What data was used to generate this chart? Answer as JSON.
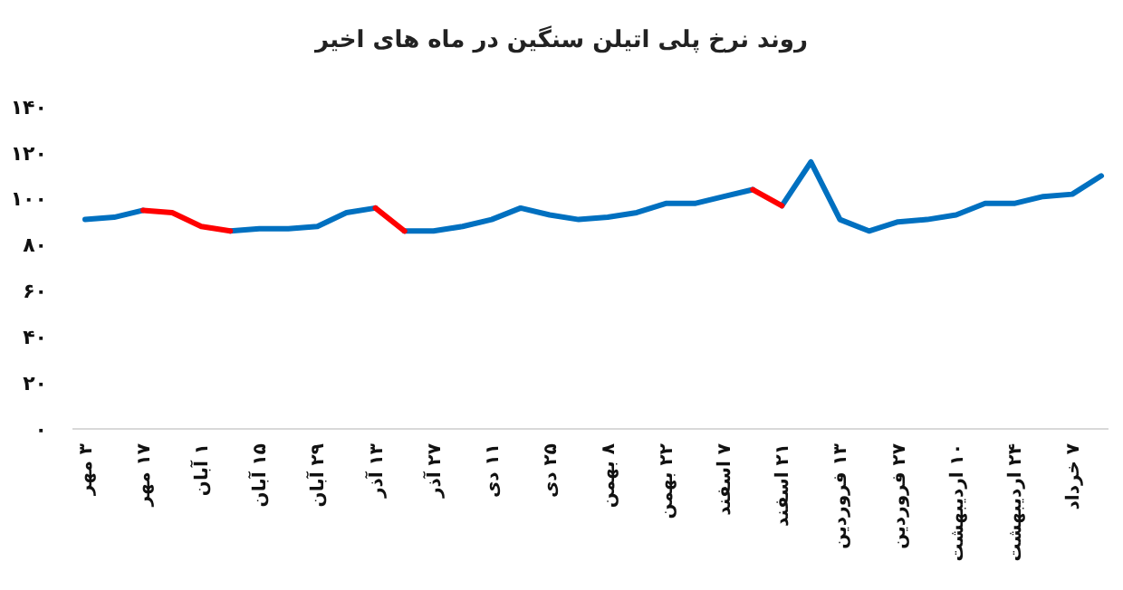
{
  "chart_data": {
    "type": "line",
    "title": "روند نرخ پلی اتیلن سنگین در ماه های اخیر",
    "categories": [
      "۳ مهر",
      null,
      "۱۷ مهر",
      null,
      "۱ آبان",
      null,
      "۱۵ آبان",
      null,
      "۲۹ آبان",
      null,
      "۱۳ آذر",
      null,
      "۲۷ آذر",
      null,
      "۱۱ دی",
      null,
      "۲۵ دی",
      null,
      "۸ بهمن",
      null,
      "۲۲ بهمن",
      null,
      "۷ اسفند",
      null,
      "۲۱ اسفند",
      null,
      "۱۳ فروردین",
      null,
      "۲۷ فروردین",
      null,
      "۱۰ اردیبهشت",
      null,
      "۲۴ اردیبهشت",
      null,
      "۷ خرداد",
      null
    ],
    "series": [
      {
        "color": "#0070c0",
        "values": [
          91,
          92,
          95,
          null,
          null,
          86,
          87,
          87,
          88,
          94,
          96,
          null,
          null,
          null,
          null,
          null,
          null,
          null,
          null,
          null,
          null,
          null,
          null,
          null,
          97,
          116,
          91,
          86,
          90,
          91,
          93,
          98,
          98,
          101,
          102,
          110
        ]
      },
      {
        "color": "#0070c0",
        "values": [
          null,
          null,
          null,
          null,
          null,
          null,
          null,
          null,
          null,
          null,
          null,
          86,
          86,
          88,
          91,
          96,
          93,
          91,
          92,
          94,
          98,
          98,
          101,
          104,
          null,
          null,
          null,
          null,
          null,
          null,
          null,
          null,
          null,
          null,
          null,
          null
        ]
      },
      {
        "color": "#ff0000",
        "values": [
          null,
          null,
          95,
          94,
          88,
          86,
          null,
          null,
          null,
          null,
          96,
          86,
          null,
          null,
          null,
          null,
          null,
          null,
          null,
          null,
          null,
          null,
          null,
          104,
          97,
          null,
          null,
          null,
          null,
          null,
          null,
          null,
          null,
          null,
          null,
          null
        ]
      }
    ],
    "ylim": [
      0,
      140
    ],
    "yticks": [
      {
        "value": 0,
        "label": "۰"
      },
      {
        "value": 20,
        "label": "۲۰"
      },
      {
        "value": 40,
        "label": "۴۰"
      },
      {
        "value": 60,
        "label": "۶۰"
      },
      {
        "value": 80,
        "label": "۸۰"
      },
      {
        "value": 100,
        "label": "۱۰۰"
      },
      {
        "value": 120,
        "label": "۱۲۰"
      },
      {
        "value": 140,
        "label": "۱۴۰"
      }
    ],
    "grid": false
  }
}
